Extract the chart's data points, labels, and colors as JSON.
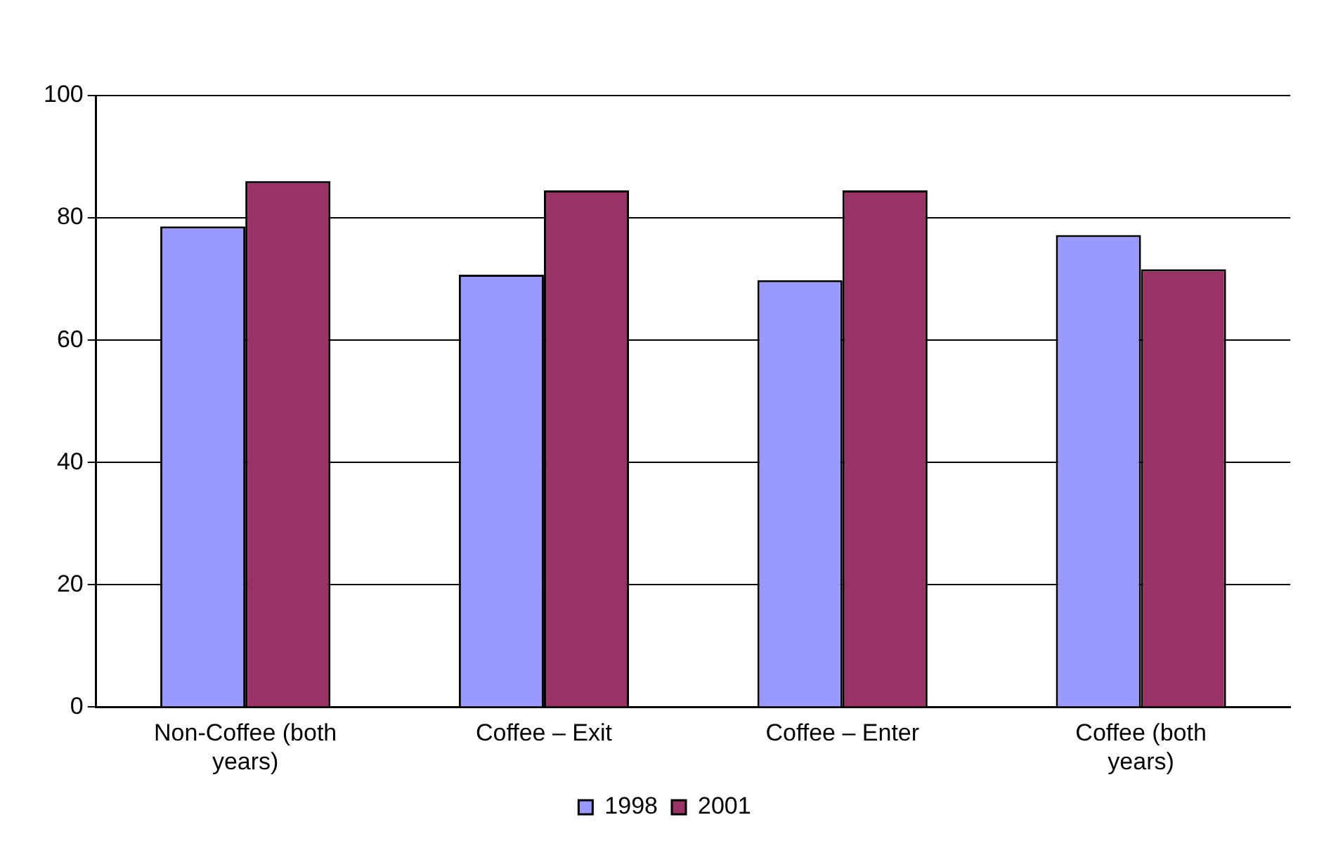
{
  "chart_data": {
    "type": "bar",
    "categories": [
      "Non-Coffee (both years)",
      "Coffee – Exit",
      "Coffee – Enter",
      "Coffee (both years)"
    ],
    "series": [
      {
        "name": "1998",
        "color": "#9999ff",
        "values": [
          78.6,
          70.7,
          69.8,
          77.2
        ]
      },
      {
        "name": "2001",
        "color": "#993366",
        "values": [
          86.0,
          84.5,
          84.5,
          71.6
        ]
      }
    ],
    "ylim": [
      0,
      100
    ],
    "yticks": [
      0,
      20,
      40,
      60,
      80,
      100
    ],
    "grid": "y",
    "legend": "bottom"
  }
}
